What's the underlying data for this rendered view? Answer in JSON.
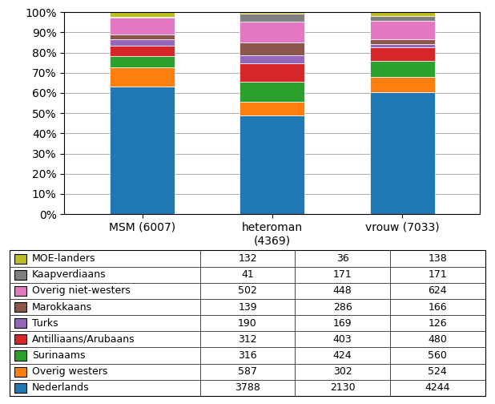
{
  "chart_data": {
    "type": "bar",
    "stacked": true,
    "grid": true,
    "categories": [
      "MSM (6007)",
      "heteroman\n(4369)",
      "vrouw (7033)"
    ],
    "series": [
      {
        "name": "Nederlands",
        "values": [
          63.06,
          48.75,
          60.34
        ]
      },
      {
        "name": "Overig westers",
        "values": [
          9.77,
          6.91,
          7.45
        ]
      },
      {
        "name": "Surinaams",
        "values": [
          5.26,
          9.7,
          7.96
        ]
      },
      {
        "name": "Antilliaans/Arubaans",
        "values": [
          5.19,
          9.22,
          6.82
        ]
      },
      {
        "name": "Turks",
        "values": [
          3.16,
          3.87,
          1.79
        ]
      },
      {
        "name": "Marokkaans",
        "values": [
          2.31,
          6.55,
          2.36
        ]
      },
      {
        "name": "Overig niet-westers",
        "values": [
          8.36,
          10.25,
          8.87
        ]
      },
      {
        "name": "Kaapverdiaans",
        "values": [
          0.68,
          3.91,
          2.43
        ]
      },
      {
        "name": "MOE-landers",
        "values": [
          2.2,
          0.82,
          1.96
        ]
      }
    ],
    "ylim": [
      0,
      100
    ],
    "yticks": [
      {
        "value": 0,
        "label": "0%"
      },
      {
        "value": 10,
        "label": "10%"
      },
      {
        "value": 20,
        "label": "20%"
      },
      {
        "value": 30,
        "label": "30%"
      },
      {
        "value": 40,
        "label": "40%"
      },
      {
        "value": 50,
        "label": "50%"
      },
      {
        "value": 60,
        "label": "60%"
      },
      {
        "value": 70,
        "label": "70%"
      },
      {
        "value": 80,
        "label": "80%"
      },
      {
        "value": 90,
        "label": "90%"
      },
      {
        "value": 100,
        "label": "100%"
      }
    ],
    "table": [
      {
        "name": "MOE-landers",
        "values": [
          132,
          36,
          138
        ]
      },
      {
        "name": "Kaapverdiaans",
        "values": [
          41,
          171,
          171
        ]
      },
      {
        "name": "Overig niet-westers",
        "values": [
          502,
          448,
          624
        ]
      },
      {
        "name": "Marokkaans",
        "values": [
          139,
          286,
          166
        ]
      },
      {
        "name": "Turks",
        "values": [
          190,
          169,
          126
        ]
      },
      {
        "name": "Antilliaans/Arubaans",
        "values": [
          312,
          403,
          480
        ]
      },
      {
        "name": "Surinaams",
        "values": [
          316,
          424,
          560
        ]
      },
      {
        "name": "Overig westers",
        "values": [
          587,
          302,
          524
        ]
      },
      {
        "name": "Nederlands",
        "values": [
          3788,
          2130,
          4244
        ]
      }
    ]
  }
}
